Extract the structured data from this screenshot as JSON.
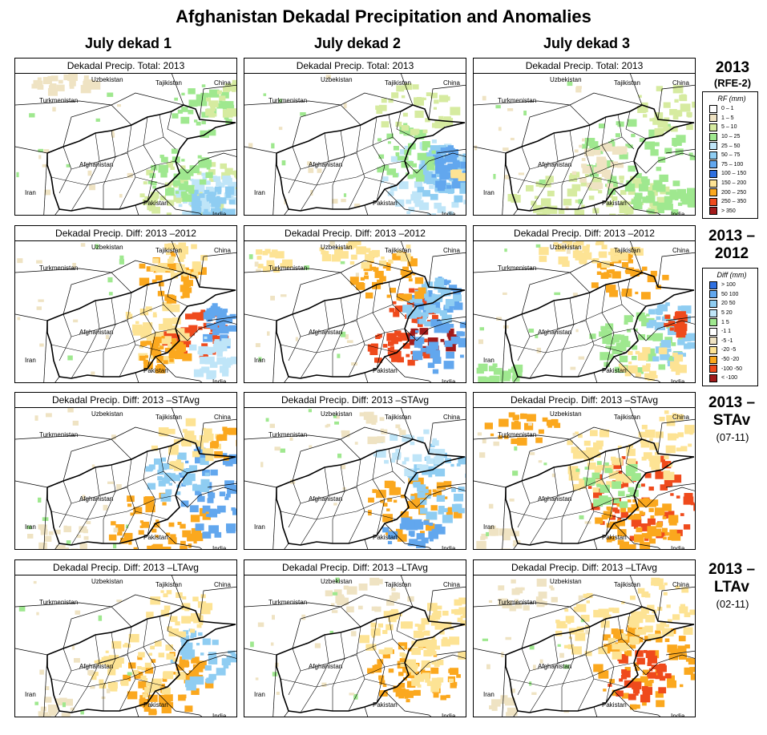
{
  "title": "Afghanistan Dekadal Precipitation and Anomalies",
  "columns": [
    "July dekad 1",
    "July dekad 2",
    "July dekad 3"
  ],
  "rows": [
    {
      "id": "total",
      "heading": "2013",
      "sub": "(RFE-2)",
      "panel_title": "Dekadal Precip. Total: 2013",
      "legend": {
        "title": "RF (mm)",
        "items": [
          {
            "label": "0 – 1",
            "color": "#ffffff"
          },
          {
            "label": "1 – 5",
            "color": "#efe3c3"
          },
          {
            "label": "5 – 10",
            "color": "#d6eba0"
          },
          {
            "label": "10 – 25",
            "color": "#9fe88f"
          },
          {
            "label": "25 – 50",
            "color": "#bfe5f8"
          },
          {
            "label": "50 – 75",
            "color": "#8fcdf2"
          },
          {
            "label": "75 – 100",
            "color": "#62a7ee"
          },
          {
            "label": "100 – 150",
            "color": "#2f70e0"
          },
          {
            "label": "150 – 200",
            "color": "#fde394"
          },
          {
            "label": "200 – 250",
            "color": "#fba81e"
          },
          {
            "label": "250 – 350",
            "color": "#ef4a1c"
          },
          {
            "label": "> 350",
            "color": "#a11a1a"
          }
        ]
      }
    },
    {
      "id": "diff2012",
      "heading": "2013 –2012",
      "sub": "",
      "panel_title": "Dekadal Precip. Diff: 2013 –2012",
      "legend": {
        "title": "Diff (mm)",
        "items": [
          {
            "label": "> 100",
            "color": "#2f70e0"
          },
          {
            "label": "50 100",
            "color": "#62a7ee"
          },
          {
            "label": "20 50",
            "color": "#8fcdf2"
          },
          {
            "label": "5 20",
            "color": "#bfe5f8"
          },
          {
            "label": "1 5",
            "color": "#9fe88f"
          },
          {
            "label": "-1 1",
            "color": "#ffffff"
          },
          {
            "label": "-5 -1",
            "color": "#efe3c3"
          },
          {
            "label": "-20 -5",
            "color": "#fde394"
          },
          {
            "label": "-50 -20",
            "color": "#fba81e"
          },
          {
            "label": "-100 -50",
            "color": "#ef4a1c"
          },
          {
            "label": "< -100",
            "color": "#a11a1a"
          }
        ]
      }
    },
    {
      "id": "diffstavg",
      "heading": "2013 –STAv",
      "sub": "(07-11)",
      "panel_title": "Dekadal Precip. Diff: 2013 –STAvg"
    },
    {
      "id": "diffltavg",
      "heading": "2013 –LTAv",
      "sub": "(02-11)",
      "panel_title": "Dekadal Precip. Diff: 2013 –LTAvg"
    }
  ],
  "map_labels": {
    "uzbekistan": "Uzbekistan",
    "tajikistan": "Tajikistan",
    "china": "China",
    "turkmenistan": "Turkmenistan",
    "afghanistan": "Afghanistan",
    "iran": "Iran",
    "pakistan": "Pakistan",
    "india": "India"
  },
  "map_palette": {
    "cream": "#efe3c3",
    "light_green": "#d6eba0",
    "green": "#9fe88f",
    "pale_blue": "#bfe5f8",
    "light_blue": "#8fcdf2",
    "mid_blue": "#62a7ee",
    "blue": "#2f70e0",
    "yellow": "#fde394",
    "orange": "#fba81e",
    "red_orange": "#ef4a1c",
    "dark_red": "#a11a1a"
  }
}
